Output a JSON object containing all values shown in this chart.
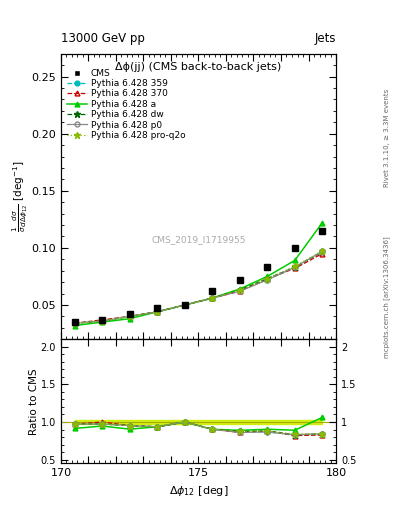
{
  "title_top": "13000 GeV pp",
  "title_right": "Jets",
  "plot_title": "Δϕ(jj) (CMS back-to-back jets)",
  "ylabel_main": "$\\frac{1}{\\sigma}\\frac{d\\sigma}{d\\Delta\\phi_{12}}$ [deg$^{-1}$]",
  "ylabel_ratio": "Ratio to CMS",
  "xlabel": "$\\Delta\\phi_{12}$ [deg]",
  "right_label_top": "Rivet 3.1.10, ≥ 3.3M events",
  "right_label_bot": "mcplots.cern.ch [arXiv:1306.3436]",
  "watermark": "CMS_2019_I1719955",
  "x": [
    170.5,
    171.5,
    172.5,
    173.5,
    174.5,
    175.5,
    176.5,
    177.5,
    178.5,
    179.5
  ],
  "cms_y": [
    0.035,
    0.037,
    0.042,
    0.047,
    0.05,
    0.062,
    0.072,
    0.083,
    0.1,
    0.115
  ],
  "py359_y": [
    0.034,
    0.036,
    0.04,
    0.044,
    0.05,
    0.056,
    0.063,
    0.072,
    0.083,
    0.096
  ],
  "py370_y": [
    0.034,
    0.037,
    0.04,
    0.044,
    0.05,
    0.056,
    0.062,
    0.073,
    0.082,
    0.095
  ],
  "pya_y": [
    0.032,
    0.035,
    0.038,
    0.044,
    0.05,
    0.056,
    0.064,
    0.075,
    0.089,
    0.122
  ],
  "pydw_y": [
    0.034,
    0.036,
    0.04,
    0.044,
    0.05,
    0.056,
    0.063,
    0.073,
    0.083,
    0.097
  ],
  "pyp0_y": [
    0.034,
    0.036,
    0.04,
    0.044,
    0.05,
    0.056,
    0.062,
    0.072,
    0.083,
    0.097
  ],
  "pyq2o_y": [
    0.034,
    0.036,
    0.04,
    0.044,
    0.05,
    0.056,
    0.063,
    0.073,
    0.084,
    0.097
  ],
  "ylim_main": [
    0.02,
    0.27
  ],
  "ylim_ratio": [
    0.45,
    2.1
  ],
  "yticks_main": [
    0.05,
    0.1,
    0.15,
    0.2,
    0.25
  ],
  "yticks_ratio": [
    0.5,
    1.0,
    1.5,
    2.0
  ],
  "xlim": [
    170,
    180
  ],
  "xticks": [
    170,
    171,
    172,
    173,
    174,
    175,
    176,
    177,
    178,
    179,
    180
  ],
  "cms_color": "#000000",
  "py359_color": "#00bbbb",
  "py370_color": "#cc0000",
  "pya_color": "#00cc00",
  "pydw_color": "#006600",
  "pyp0_color": "#888888",
  "pyq2o_color": "#88bb00",
  "band_color": "#ccee00",
  "band_alpha": 0.5
}
